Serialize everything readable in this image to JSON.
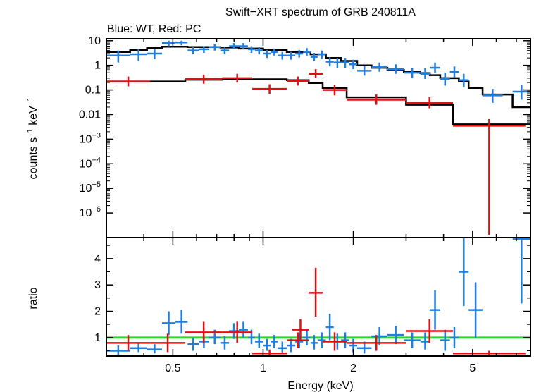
{
  "chart_data": [
    {
      "type": "scatter",
      "panel": "spectrum",
      "title": "Swift−XRT spectrum of GRB 240811A",
      "subtitle": "Blue: WT, Red: PC",
      "xlabel": "Energy (keV)",
      "ylabel_parts": {
        "counts": "counts s",
        "sup1": "−1",
        "kev": " keV",
        "sup2": "−1"
      },
      "x_scale": "log",
      "y_scale": "log",
      "xlim": [
        0.3,
        7.8
      ],
      "ylim": [
        1e-07,
        12
      ],
      "x_ticks": [
        {
          "value": 0.5,
          "label": "0.5"
        },
        {
          "value": 1,
          "label": "1"
        },
        {
          "value": 2,
          "label": "2"
        },
        {
          "value": 5,
          "label": "5"
        }
      ],
      "y_ticks": [
        {
          "value": 10,
          "label": "10"
        },
        {
          "value": 1,
          "label": "1"
        },
        {
          "value": 0.1,
          "label": "0.1"
        },
        {
          "value": 0.01,
          "label": "0.01"
        },
        {
          "value": 0.001,
          "mant": "10",
          "exp": "−3"
        },
        {
          "value": 0.0001,
          "mant": "10",
          "exp": "−4"
        },
        {
          "value": 1e-05,
          "mant": "10",
          "exp": "−5"
        },
        {
          "value": 1e-06,
          "mant": "10",
          "exp": "−6"
        }
      ],
      "series": [
        {
          "name": "WT data",
          "color": "#1f7fe0",
          "points": [
            [
              0.3,
              0.36,
              2.5,
              1.3,
              4
            ],
            [
              0.36,
              0.41,
              2.8,
              1.5,
              4.5
            ],
            [
              0.41,
              0.46,
              3,
              1.8,
              4.5
            ],
            [
              0.46,
              0.51,
              8,
              6,
              10
            ],
            [
              0.51,
              0.56,
              8.5,
              6.5,
              10
            ],
            [
              0.56,
              0.61,
              4,
              2.8,
              5.5
            ],
            [
              0.61,
              0.66,
              4.5,
              3.2,
              6
            ],
            [
              0.66,
              0.72,
              5.5,
              4,
              7.5
            ],
            [
              0.72,
              0.77,
              4,
              2.8,
              5.5
            ],
            [
              0.77,
              0.83,
              6,
              4.5,
              8
            ],
            [
              0.83,
              0.89,
              6,
              4.5,
              8
            ],
            [
              0.89,
              0.94,
              4.5,
              3.2,
              6
            ],
            [
              0.94,
              1.0,
              4,
              2.8,
              5.5
            ],
            [
              1.0,
              1.06,
              3,
              2,
              4.2
            ],
            [
              1.06,
              1.12,
              3.5,
              2.5,
              4.8
            ],
            [
              1.12,
              1.2,
              2.5,
              1.7,
              3.5
            ],
            [
              1.2,
              1.28,
              2.5,
              1.7,
              3.5
            ],
            [
              1.28,
              1.36,
              3,
              2.1,
              4.2
            ],
            [
              1.36,
              1.44,
              3.5,
              2.5,
              5
            ],
            [
              1.44,
              1.52,
              2.2,
              1.5,
              3.2
            ],
            [
              1.52,
              1.62,
              2.8,
              1.9,
              4
            ],
            [
              1.62,
              1.72,
              1.4,
              0.9,
              2.1
            ],
            [
              1.72,
              1.82,
              1.3,
              0.8,
              2
            ],
            [
              1.82,
              1.94,
              1.3,
              0.8,
              2
            ],
            [
              1.94,
              2.06,
              1.1,
              0.7,
              1.7
            ],
            [
              2.06,
              2.3,
              0.6,
              0.38,
              0.95
            ],
            [
              2.3,
              2.6,
              0.85,
              0.55,
              1.3
            ],
            [
              2.6,
              2.95,
              0.7,
              0.45,
              1.1
            ],
            [
              2.95,
              3.35,
              0.5,
              0.3,
              0.8
            ],
            [
              3.35,
              3.6,
              0.45,
              0.28,
              0.75
            ],
            [
              3.6,
              3.9,
              0.8,
              0.5,
              1.3
            ],
            [
              3.9,
              4.2,
              0.28,
              0.15,
              0.5
            ],
            [
              4.2,
              4.5,
              0.55,
              0.33,
              0.9
            ],
            [
              4.5,
              4.85,
              0.25,
              0.13,
              0.45
            ],
            [
              5.4,
              6.3,
              0.06,
              0.03,
              0.11
            ],
            [
              6.8,
              7.8,
              0.085,
              0.04,
              0.16
            ]
          ]
        },
        {
          "name": "PC data",
          "color": "#e01010",
          "points": [
            [
              0.3,
              0.42,
              0.22,
              0.14,
              0.35
            ],
            [
              0.55,
              0.73,
              0.28,
              0.18,
              0.42
            ],
            [
              0.73,
              0.92,
              0.3,
              0.2,
              0.45
            ],
            [
              0.92,
              1.2,
              0.11,
              0.07,
              0.17
            ],
            [
              1.2,
              1.42,
              0.23,
              0.15,
              0.35
            ],
            [
              1.42,
              1.58,
              0.45,
              0.3,
              0.7
            ],
            [
              1.58,
              1.9,
              0.1,
              0.06,
              0.16
            ],
            [
              1.9,
              3.0,
              0.04,
              0.025,
              0.065
            ],
            [
              3.0,
              4.3,
              0.03,
              0.018,
              0.05
            ],
            [
              4.3,
              7.5,
              0.0035,
              1.3e-07,
              0.0065
            ]
          ]
        }
      ],
      "models": [
        {
          "name": "WT model",
          "color": "#000000",
          "steps": [
            [
              0.3,
              0.36,
              3.5
            ],
            [
              0.36,
              0.41,
              4.2
            ],
            [
              0.41,
              0.46,
              5
            ],
            [
              0.46,
              0.56,
              5.7
            ],
            [
              0.56,
              0.72,
              5.5
            ],
            [
              0.72,
              0.83,
              5.3
            ],
            [
              0.83,
              1.0,
              4.8
            ],
            [
              1.0,
              1.2,
              4.2
            ],
            [
              1.2,
              1.44,
              3.5
            ],
            [
              1.44,
              1.62,
              2.8
            ],
            [
              1.62,
              1.82,
              2.0
            ],
            [
              1.82,
              2.06,
              1.5
            ],
            [
              2.06,
              2.3,
              1.0
            ],
            [
              2.3,
              2.6,
              0.8
            ],
            [
              2.6,
              2.95,
              0.65
            ],
            [
              2.95,
              3.35,
              0.55
            ],
            [
              3.35,
              3.6,
              0.48
            ],
            [
              3.6,
              3.9,
              0.4
            ],
            [
              3.9,
              4.5,
              0.3
            ],
            [
              4.5,
              4.85,
              0.22
            ],
            [
              4.85,
              5.4,
              0.12
            ],
            [
              5.4,
              6.8,
              0.065
            ],
            [
              6.8,
              7.8,
              0.02
            ]
          ]
        },
        {
          "name": "PC model",
          "color": "#000000",
          "steps": [
            [
              0.3,
              0.55,
              0.22
            ],
            [
              0.55,
              0.73,
              0.26
            ],
            [
              0.73,
              0.92,
              0.27
            ],
            [
              0.92,
              1.2,
              0.27
            ],
            [
              1.2,
              1.42,
              0.25
            ],
            [
              1.42,
              1.58,
              0.19
            ],
            [
              1.58,
              1.9,
              0.12
            ],
            [
              1.9,
              3.0,
              0.05
            ],
            [
              3.0,
              4.3,
              0.025
            ],
            [
              4.3,
              7.8,
              0.004
            ]
          ]
        }
      ]
    },
    {
      "type": "scatter",
      "panel": "ratio",
      "xlabel": "Energy (keV)",
      "ylabel": "ratio",
      "x_scale": "log",
      "y_scale": "linear",
      "xlim": [
        0.3,
        7.8
      ],
      "ylim": [
        0.3,
        4.8
      ],
      "reference_line": {
        "value": 1,
        "color": "#22dd22"
      },
      "y_ticks": [
        {
          "value": 1,
          "label": "1"
        },
        {
          "value": 2,
          "label": "2"
        },
        {
          "value": 3,
          "label": "3"
        },
        {
          "value": 4,
          "label": "4"
        }
      ],
      "series": [
        {
          "name": "WT ratio",
          "color": "#1f7fe0",
          "points": [
            [
              0.3,
              0.36,
              0.5,
              0.35,
              0.7
            ],
            [
              0.36,
              0.41,
              0.6,
              0.45,
              0.8
            ],
            [
              0.41,
              0.46,
              0.55,
              0.4,
              0.75
            ],
            [
              0.46,
              0.51,
              1.55,
              1.1,
              2.0
            ],
            [
              0.51,
              0.56,
              1.6,
              1.15,
              2.05
            ],
            [
              0.56,
              0.61,
              0.75,
              0.5,
              1.0
            ],
            [
              0.61,
              0.66,
              0.85,
              0.6,
              1.1
            ],
            [
              0.66,
              0.72,
              1.0,
              0.75,
              1.3
            ],
            [
              0.72,
              0.77,
              0.8,
              0.55,
              1.05
            ],
            [
              0.77,
              0.83,
              1.25,
              0.95,
              1.55
            ],
            [
              0.83,
              0.89,
              1.3,
              1.0,
              1.6
            ],
            [
              0.89,
              0.94,
              1.0,
              0.75,
              1.3
            ],
            [
              0.94,
              1.0,
              0.85,
              0.6,
              1.15
            ],
            [
              1.0,
              1.06,
              0.7,
              0.5,
              0.95
            ],
            [
              1.06,
              1.12,
              0.85,
              0.6,
              1.1
            ],
            [
              1.12,
              1.2,
              0.6,
              0.4,
              0.85
            ],
            [
              1.2,
              1.28,
              0.7,
              0.45,
              0.95
            ],
            [
              1.28,
              1.36,
              0.85,
              0.6,
              1.15
            ],
            [
              1.36,
              1.44,
              1.0,
              0.7,
              1.3
            ],
            [
              1.44,
              1.52,
              0.8,
              0.55,
              1.1
            ],
            [
              1.52,
              1.62,
              0.9,
              0.6,
              1.2
            ],
            [
              1.62,
              1.72,
              1.4,
              0.9,
              1.9
            ],
            [
              1.72,
              1.82,
              0.85,
              0.55,
              1.15
            ],
            [
              1.82,
              1.94,
              0.9,
              0.6,
              1.2
            ],
            [
              1.94,
              2.06,
              0.7,
              0.45,
              0.95
            ],
            [
              2.06,
              2.3,
              0.6,
              0.4,
              0.85
            ],
            [
              2.3,
              2.6,
              1.05,
              0.7,
              1.4
            ],
            [
              2.6,
              2.95,
              1.1,
              0.75,
              1.45
            ],
            [
              2.95,
              3.35,
              0.9,
              0.6,
              1.2
            ],
            [
              3.35,
              3.6,
              0.85,
              0.55,
              1.2
            ],
            [
              3.6,
              3.9,
              2.05,
              1.3,
              2.8
            ],
            [
              3.9,
              4.2,
              0.9,
              0.5,
              1.3
            ],
            [
              4.2,
              4.5,
              1.0,
              0.6,
              1.4
            ],
            [
              4.5,
              4.85,
              3.5,
              2.2,
              4.8
            ],
            [
              4.85,
              5.4,
              2.05,
              1.0,
              3.1
            ],
            [
              6.8,
              7.8,
              4.75,
              2.3,
              4.8
            ]
          ]
        },
        {
          "name": "PC ratio",
          "color": "#e01010",
          "points": [
            [
              0.3,
              0.42,
              0.8,
              0.5,
              1.1
            ],
            [
              0.42,
              0.55,
              0.8,
              0.45,
              1.15
            ],
            [
              0.55,
              0.73,
              1.2,
              0.8,
              1.6
            ],
            [
              0.73,
              0.92,
              1.2,
              0.8,
              1.6
            ],
            [
              0.92,
              1.2,
              0.4,
              0.3,
              0.55
            ],
            [
              1.2,
              1.42,
              0.9,
              0.6,
              1.2
            ],
            [
              1.25,
              1.42,
              1.3,
              0.9,
              1.7
            ],
            [
              1.42,
              1.58,
              2.7,
              1.8,
              3.65
            ],
            [
              1.58,
              1.9,
              0.85,
              0.5,
              1.2
            ],
            [
              1.9,
              3.0,
              0.8,
              0.5,
              1.1
            ],
            [
              3.0,
              4.3,
              1.25,
              0.8,
              1.7
            ],
            [
              4.3,
              7.5,
              0.4,
              0.3,
              0.5
            ]
          ]
        }
      ]
    }
  ]
}
